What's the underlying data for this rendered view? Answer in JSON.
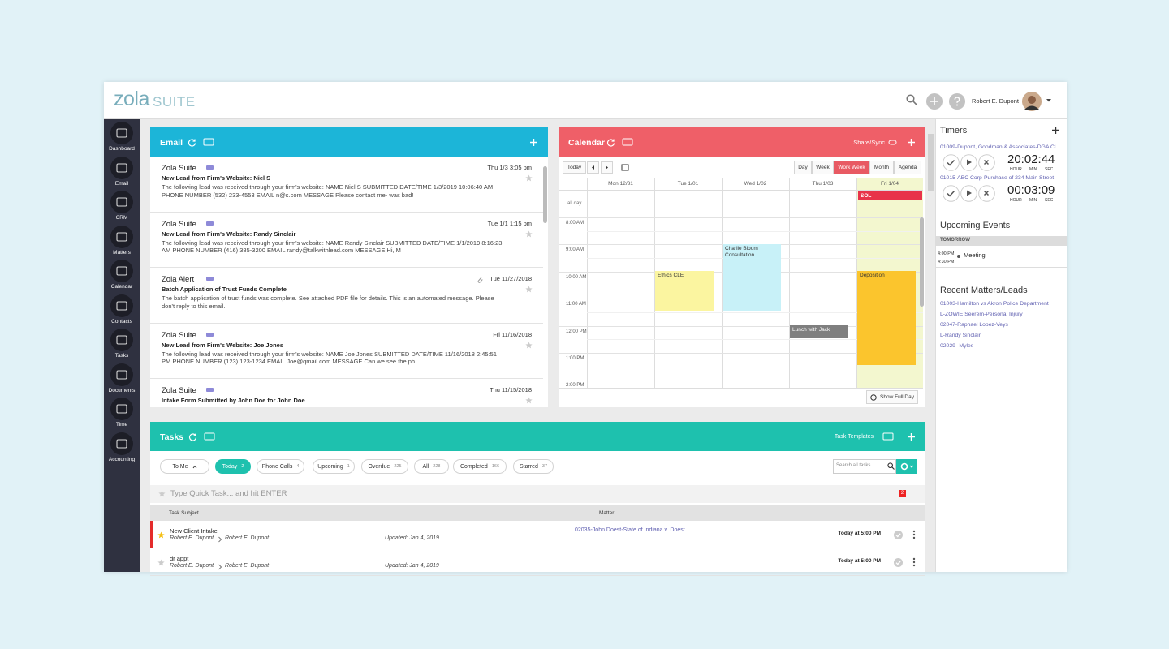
{
  "header": {
    "logo_main": "zola",
    "logo_sub": "SUITE",
    "user": "Robert E. Dupont"
  },
  "sidebar": [
    "Dashboard",
    "Email",
    "CRM",
    "Matters",
    "Calendar",
    "Contacts",
    "Tasks",
    "Documents",
    "Time",
    "Accounting"
  ],
  "email": {
    "title": "Email",
    "items": [
      {
        "sender": "Zola Suite",
        "subject": "New Lead from Firm's Website: Niel S",
        "preview": "The following lead was received through your firm's website: NAME Niel S SUBMITTED DATE/TIME 1/3/2019 10:06:40 AM PHONE NUMBER (532) 233-4553 EMAIL n@s.com MESSAGE Please contact me- was bad!",
        "date": "Thu 1/3 3:05 pm"
      },
      {
        "sender": "Zola Suite",
        "subject": "New Lead from Firm's Website: Randy Sinclair",
        "preview": "The following lead was received through your firm's website: NAME Randy Sinclair SUBMITTED DATE/TIME 1/1/2019 8:16:23 AM PHONE NUMBER (416) 385-3200 EMAIL randy@talkwithlead.com MESSAGE Hi, M",
        "date": "Tue 1/1 1:15 pm"
      },
      {
        "sender": "Zola Alert",
        "subject": "Batch Application of Trust Funds Complete",
        "preview": "The batch application of trust funds was complete. See attached PDF file for details. This is an automated message. Please don't reply to this email.",
        "date": "Tue 11/27/2018"
      },
      {
        "sender": "Zola Suite",
        "subject": "New Lead from Firm's Website: Joe Jones",
        "preview": "The following lead was received through your firm's website: NAME Joe Jones SUBMITTED DATE/TIME 11/16/2018 2:45:51 PM PHONE NUMBER (123) 123-1234 EMAIL Joe@qmail.com MESSAGE Can we see the ph",
        "date": "Fri 11/16/2018"
      },
      {
        "sender": "Zola Suite",
        "subject": "Intake Form Submitted by John Doe for John Doe",
        "date": "Thu 11/15/2018"
      }
    ]
  },
  "calendar": {
    "title": "Calendar",
    "share": "Share/Sync",
    "today": "Today",
    "views": [
      "Day",
      "Week",
      "Work Week",
      "Month",
      "Agenda"
    ],
    "days": [
      "Mon 12/31",
      "Tue 1/01",
      "Wed 1/02",
      "Thu 1/03",
      "Fri 1/04"
    ],
    "all_day": "all day",
    "times": [
      "8:00 AM",
      "9:00 AM",
      "10:00 AM",
      "11:00 AM",
      "12:00 PM",
      "1:00 PM",
      "2:00 PM"
    ],
    "events": [
      "SOL",
      "Charlie Bloom Consultation",
      "Ethics CLE",
      "Lunch with Jack",
      "Deposition"
    ],
    "show_full": "Show Full Day"
  },
  "tasks": {
    "title": "Tasks",
    "templates": "Task Templates",
    "filters": [
      {
        "label": "To Me"
      },
      {
        "label": "Today",
        "count": 2
      },
      {
        "label": "Phone Calls",
        "count": 4
      },
      {
        "label": "Upcoming",
        "count": 1
      },
      {
        "label": "Overdue",
        "count": 225
      },
      {
        "label": "All",
        "count": 228
      },
      {
        "label": "Completed",
        "count": 166
      },
      {
        "label": "Starred",
        "count": 37
      }
    ],
    "search": "Search all tasks",
    "quick": "Type Quick Task... and hit ENTER",
    "quick_badge": 2,
    "columns": [
      "Task Subject",
      "Matter"
    ],
    "rows": [
      {
        "subject": "New Client Intake",
        "from": "Robert E. Dupont",
        "to": "Robert E. Dupont",
        "updated": "Updated: Jan 4, 2019",
        "matter": "02035-John Doest-State of Indiana v. Doest",
        "due": "Today at 5:00 PM"
      },
      {
        "subject": "dr appt",
        "from": "Robert E. Dupont",
        "to": "Robert E. Dupont",
        "updated": "Updated: Jan 4, 2019",
        "due": "Today at 5:00 PM"
      }
    ]
  },
  "timers": {
    "title": "Timers",
    "units": [
      "HOUR",
      "MIN",
      "SEC"
    ],
    "items": [
      {
        "matter": "01009-Dupont, Goodman & Associates-DGA CL",
        "time": "20:02:44"
      },
      {
        "matter": "01015-ABC Corp-Purchase of 234 Main Street",
        "time": "00:03:09"
      }
    ]
  },
  "upcoming": {
    "title": "Upcoming Events",
    "day": "TOMORROW",
    "start": "4:00 PM",
    "end": "4:30 PM",
    "event": "Meeting"
  },
  "recent": {
    "title": "Recent Matters/Leads",
    "items": [
      "01003-Hamilton vs Akron Police Department",
      "L-ZOWIE Seerem-Personal Injury",
      "02047-Raphael Lopez-Veys",
      "L-Randy Sinclair",
      "02029--Myles"
    ]
  }
}
